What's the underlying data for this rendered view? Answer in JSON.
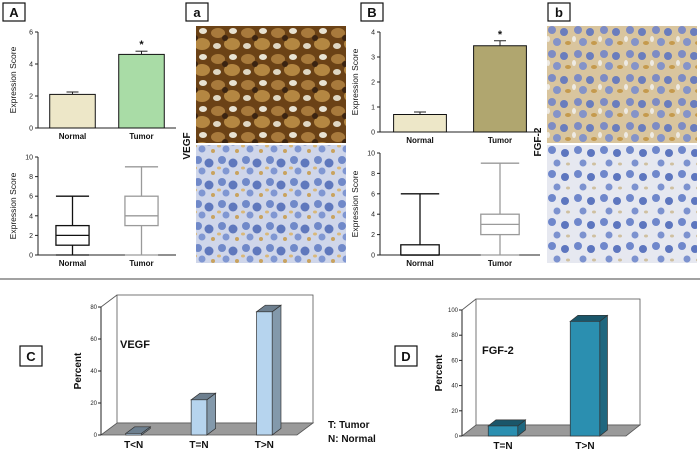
{
  "colors": {
    "normal_bar": "#ede7c8",
    "tumor_bar_A": "#a9dca6",
    "tumor_bar_B": "#b0a66f",
    "percent_bar_C": "#b6d4ee",
    "percent_bar_D": "#2b8fb0",
    "vegf_strong_stain": "#8c5a26",
    "hematoxylin": "#6f86c9"
  },
  "panels": {
    "A": "A",
    "a": "a",
    "B": "B",
    "b": "b",
    "C": "C",
    "D": "D"
  },
  "stain_labels": {
    "vegf": "VEGF",
    "fgf2": "FGF-2"
  },
  "micrographs": [
    {
      "panel": "a",
      "marker": "VEGF",
      "tissue": "tumor",
      "stain": "strong brown"
    },
    {
      "panel": "a",
      "marker": "VEGF",
      "tissue": "normal",
      "stain": "weak"
    },
    {
      "panel": "b",
      "marker": "FGF-2",
      "tissue": "tumor",
      "stain": "moderate brown"
    },
    {
      "panel": "b",
      "marker": "FGF-2",
      "tissue": "normal",
      "stain": "weak"
    }
  ],
  "legend_note": {
    "line1": "T: Tumor",
    "line2": "N: Normal"
  },
  "chart_data": [
    {
      "id": "A-bar",
      "type": "bar",
      "ylabel": "Expression Score",
      "categories": [
        "Normal",
        "Tumor"
      ],
      "values": [
        2.1,
        4.6
      ],
      "errors": [
        0.15,
        0.2
      ],
      "ylim": [
        0,
        6
      ],
      "yticks": [
        0,
        2,
        4,
        6
      ],
      "significance": {
        "category": "Tumor",
        "mark": "*"
      }
    },
    {
      "id": "A-box",
      "type": "box",
      "ylabel": "Expression Score",
      "categories": [
        "Normal",
        "Tumor"
      ],
      "boxes": [
        {
          "min": 0,
          "q1": 1,
          "median": 2,
          "q3": 3,
          "max": 6
        },
        {
          "min": 0,
          "q1": 3,
          "median": 4,
          "q3": 6,
          "max": 9
        }
      ],
      "ylim": [
        0,
        10
      ],
      "yticks": [
        0,
        2,
        4,
        6,
        8,
        10
      ]
    },
    {
      "id": "B-bar",
      "type": "bar",
      "ylabel": "Expression Score",
      "categories": [
        "Normal",
        "Tumor"
      ],
      "values": [
        0.7,
        3.45
      ],
      "errors": [
        0.1,
        0.2
      ],
      "ylim": [
        0,
        4
      ],
      "yticks": [
        0,
        1,
        2,
        3,
        4
      ],
      "significance": {
        "category": "Tumor",
        "mark": "*"
      }
    },
    {
      "id": "B-box",
      "type": "box",
      "ylabel": "Expression Score",
      "categories": [
        "Normal",
        "Tumor"
      ],
      "boxes": [
        {
          "min": 0,
          "q1": 0,
          "median": 0,
          "q3": 1,
          "max": 6
        },
        {
          "min": 0,
          "q1": 2,
          "median": 3,
          "q3": 4,
          "max": 9
        }
      ],
      "ylim": [
        0,
        10
      ],
      "yticks": [
        0,
        2,
        4,
        6,
        8,
        10
      ]
    },
    {
      "id": "C",
      "type": "bar",
      "title": "VEGF",
      "ylabel": "Percent",
      "categories": [
        "T<N",
        "T=N",
        "T>N"
      ],
      "values": [
        1,
        22,
        77
      ],
      "ylim": [
        0,
        80
      ],
      "yticks": [
        0,
        20,
        40,
        60,
        80
      ]
    },
    {
      "id": "D",
      "type": "bar",
      "title": "FGF-2",
      "ylabel": "Percent",
      "categories": [
        "T=N",
        "T>N"
      ],
      "values": [
        8,
        91
      ],
      "ylim": [
        0,
        100
      ],
      "yticks": [
        0,
        20,
        40,
        60,
        80,
        100
      ]
    }
  ]
}
